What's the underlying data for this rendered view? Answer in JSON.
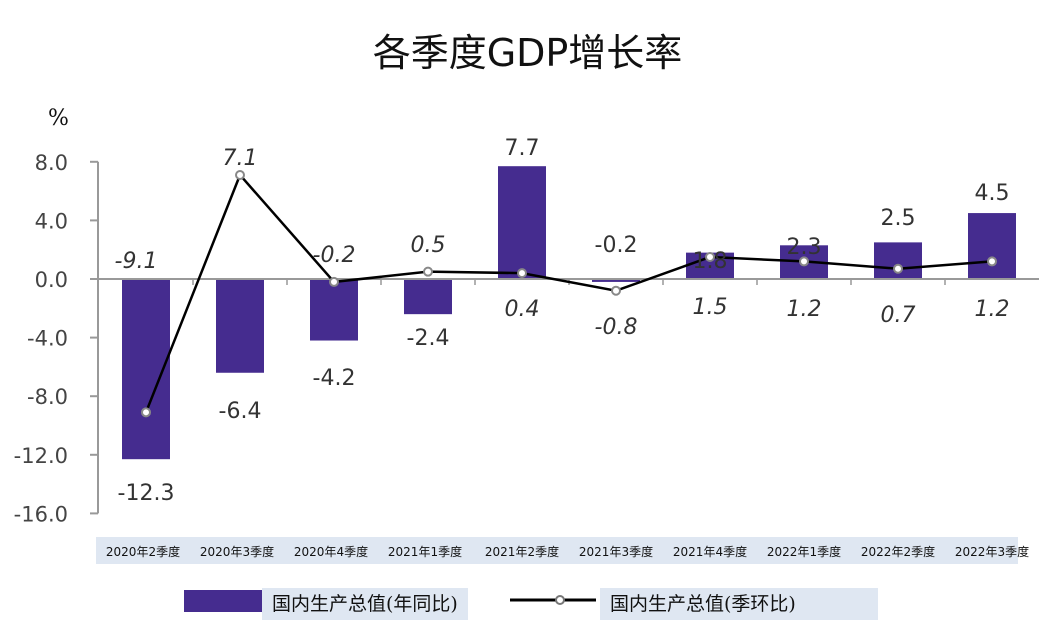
{
  "chart_data": {
    "type": "bar+line",
    "title": "各季度GDP增长率",
    "ylabel": "%",
    "ylim": [
      -16,
      8
    ],
    "yticks": [
      "8.0",
      "4.0",
      "0.0",
      "-4.0",
      "-8.0",
      "-12.0",
      "-16.0"
    ],
    "categories": [
      "2020年2季度",
      "2020年3季度",
      "2020年4季度",
      "2021年1季度",
      "2021年2季度",
      "2021年3季度",
      "2021年4季度",
      "2022年1季度",
      "2022年2季度",
      "2022年3季度"
    ],
    "series": [
      {
        "name": "国内生产总值(年同比)",
        "type": "bar",
        "color": "#452c8f",
        "values": [
          -12.3,
          -6.4,
          -4.2,
          -2.4,
          7.7,
          -0.2,
          1.8,
          2.3,
          2.5,
          4.5
        ]
      },
      {
        "name": "国内生产总值(季环比)",
        "type": "line",
        "color": "#000000",
        "values": [
          -9.1,
          7.1,
          -0.2,
          0.5,
          0.4,
          -0.8,
          1.5,
          1.2,
          0.7,
          1.2
        ]
      }
    ],
    "legend": "bottom",
    "grid": false
  }
}
